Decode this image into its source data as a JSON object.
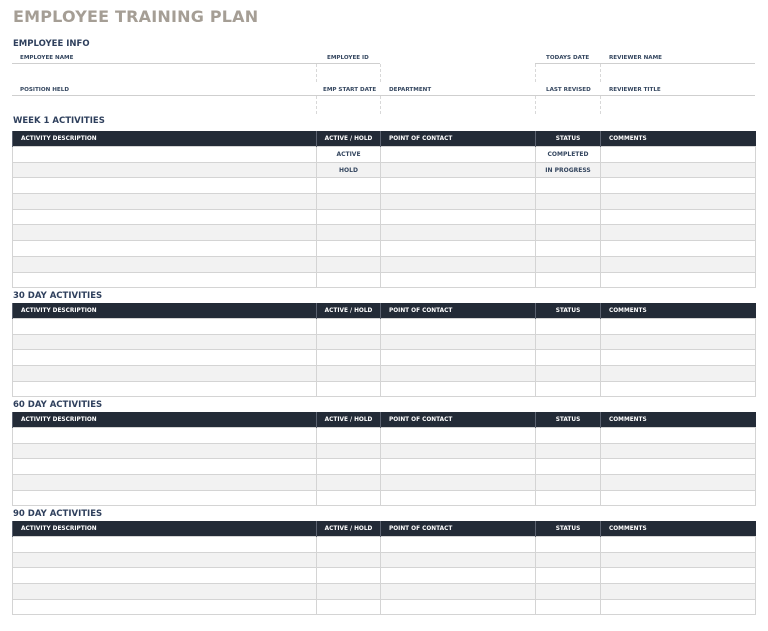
{
  "title": "EMPLOYEE TRAINING PLAN",
  "employee_info": {
    "heading": "EMPLOYEE INFO",
    "labels": {
      "employee_name": "EMPLOYEE NAME",
      "employee_id": "EMPLOYEE ID",
      "todays_date": "TODAYS DATE",
      "reviewer_name": "REVIEWER NAME",
      "position_held": "POSITION HELD",
      "emp_start_date": "EMP START DATE",
      "department": "DEPARTMENT",
      "last_revised": "LAST REVISED",
      "reviewer_title": "REVIEWER TITLE"
    }
  },
  "columns": [
    "ACTIVITY DESCRIPTION",
    "ACTIVE / HOLD",
    "POINT OF CONTACT",
    "STATUS",
    "COMMENTS"
  ],
  "sections": [
    {
      "title": "WEEK 1 ACTIVITIES",
      "rows": [
        [
          "",
          "ACTIVE",
          "",
          "COMPLETED",
          ""
        ],
        [
          "",
          "HOLD",
          "",
          "IN PROGRESS",
          ""
        ],
        [
          "",
          "",
          "",
          "",
          ""
        ],
        [
          "",
          "",
          "",
          "",
          ""
        ],
        [
          "",
          "",
          "",
          "",
          ""
        ],
        [
          "",
          "",
          "",
          "",
          ""
        ],
        [
          "",
          "",
          "",
          "",
          ""
        ],
        [
          "",
          "",
          "",
          "",
          ""
        ],
        [
          "",
          "",
          "",
          "",
          ""
        ]
      ]
    },
    {
      "title": "30 DAY ACTIVITIES",
      "rows": [
        [
          "",
          "",
          "",
          "",
          ""
        ],
        [
          "",
          "",
          "",
          "",
          ""
        ],
        [
          "",
          "",
          "",
          "",
          ""
        ],
        [
          "",
          "",
          "",
          "",
          ""
        ],
        [
          "",
          "",
          "",
          "",
          ""
        ]
      ]
    },
    {
      "title": "60 DAY ACTIVITIES",
      "rows": [
        [
          "",
          "",
          "",
          "",
          ""
        ],
        [
          "",
          "",
          "",
          "",
          ""
        ],
        [
          "",
          "",
          "",
          "",
          ""
        ],
        [
          "",
          "",
          "",
          "",
          ""
        ],
        [
          "",
          "",
          "",
          "",
          ""
        ]
      ]
    },
    {
      "title": "90 DAY ACTIVITIES",
      "rows": [
        [
          "",
          "",
          "",
          "",
          ""
        ],
        [
          "",
          "",
          "",
          "",
          ""
        ],
        [
          "",
          "",
          "",
          "",
          ""
        ],
        [
          "",
          "",
          "",
          "",
          ""
        ],
        [
          "",
          "",
          "",
          "",
          ""
        ]
      ]
    }
  ]
}
